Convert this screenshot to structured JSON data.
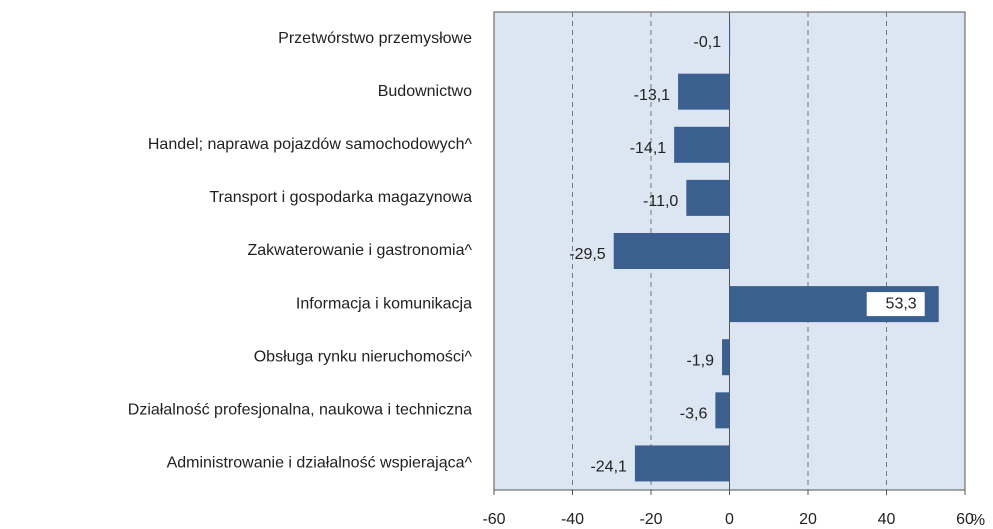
{
  "chart_data": {
    "type": "hbar",
    "categories": [
      "Przetwórstwo przemysłowe",
      "Budownictwo",
      "Handel; naprawa pojazdów samochodowych^",
      "Transport i gospodarka magazynowa",
      "Zakwaterowanie i gastronomia^",
      "Informacja i komunikacja",
      "Obsługa rynku nieruchomości^",
      "Działalność profesjonalna, naukowa i techniczna",
      "Administrowanie i działalność wspierająca^"
    ],
    "values": [
      -0.1,
      -13.1,
      -14.1,
      -11.0,
      -29.5,
      53.3,
      -1.9,
      -3.6,
      -24.1
    ],
    "value_labels": [
      "-0,1",
      "-13,1",
      "-14,1",
      "-11,0",
      "-29,5",
      "53,3",
      "-1,9",
      "-3,6",
      "-24,1"
    ],
    "color": "#3b5f8f",
    "xlim": [
      -60,
      60
    ],
    "xticks": [
      -60,
      -40,
      -20,
      0,
      20,
      40,
      60
    ],
    "x_unit": "%",
    "grid": true
  }
}
